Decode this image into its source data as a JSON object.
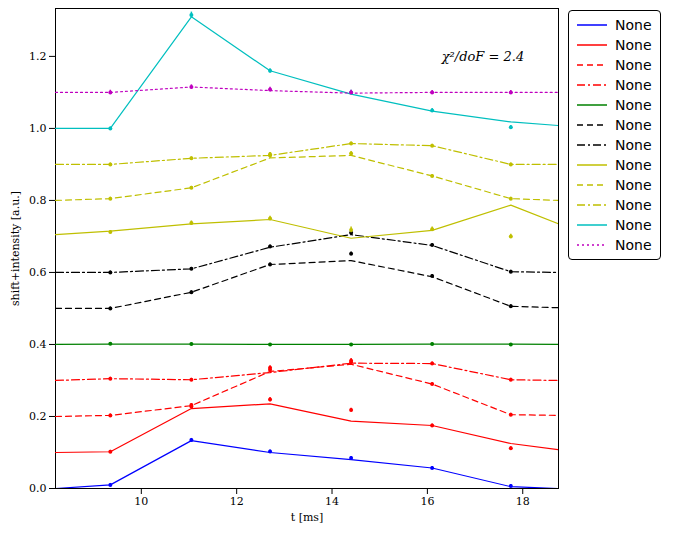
{
  "chart_data": {
    "type": "line",
    "xlabel": "t [ms]",
    "ylabel": "shift+intensity [a.u.]",
    "xlim": [
      8.2,
      18.75
    ],
    "ylim": [
      0,
      1.333
    ],
    "xticks": [
      10,
      12,
      14,
      16,
      18
    ],
    "yticks": [
      {
        "value": 0,
        "label": "0.0"
      },
      {
        "value": 0.2,
        "label": "0.2"
      },
      {
        "value": 0.4,
        "label": "0.4"
      },
      {
        "value": 0.6,
        "label": "0.6"
      },
      {
        "value": 0.8,
        "label": "0.8"
      },
      {
        "value": 1.0,
        "label": "1.0"
      },
      {
        "value": 1.2,
        "label": "1.2"
      }
    ],
    "grid": false,
    "legend": "right",
    "marker": "point",
    "annotations": [
      {
        "text": "χ²/doF = 2.4",
        "x": 16.3,
        "y": 1.2
      }
    ],
    "x": [
      9.35,
      11.05,
      12.7,
      14.4,
      16.1,
      17.75
    ],
    "model_x": [
      8.2,
      9.35,
      11.05,
      12.7,
      14.4,
      16.1,
      17.75,
      18.75
    ],
    "series": [
      {
        "name": "None",
        "color": "#0000ff",
        "line_style": "solid",
        "values": [
          0.01,
          0.135,
          0.103,
          0.085,
          0.057,
          0.007
        ],
        "errors": [
          0.004,
          0.004,
          0.004,
          0.004,
          0.004,
          0.004
        ],
        "model_values": [
          0.0,
          0.01,
          0.133,
          0.1,
          0.08,
          0.057,
          0.005,
          0.0
        ]
      },
      {
        "name": "None",
        "color": "#ff0000",
        "line_style": "solid",
        "values": [
          0.102,
          0.228,
          0.247,
          0.218,
          0.175,
          0.112
        ],
        "errors": [
          0.004,
          0.005,
          0.006,
          0.005,
          0.004,
          0.004
        ],
        "model_values": [
          0.1,
          0.102,
          0.222,
          0.235,
          0.187,
          0.175,
          0.125,
          0.108
        ]
      },
      {
        "name": "None",
        "color": "#ff0000",
        "line_style": "dashed",
        "values": [
          0.203,
          0.232,
          0.33,
          0.355,
          0.29,
          0.205
        ],
        "errors": [
          0.004,
          0.004,
          0.008,
          0.006,
          0.004,
          0.004
        ],
        "model_values": [
          0.2,
          0.203,
          0.23,
          0.325,
          0.345,
          0.29,
          0.205,
          0.203
        ]
      },
      {
        "name": "None",
        "color": "#ff0000",
        "line_style": "dashdot",
        "values": [
          0.305,
          0.302,
          0.335,
          0.35,
          0.347,
          0.302
        ],
        "errors": [
          0.004,
          0.004,
          0.006,
          0.006,
          0.004,
          0.004
        ],
        "model_values": [
          0.3,
          0.305,
          0.302,
          0.322,
          0.348,
          0.347,
          0.302,
          0.3
        ]
      },
      {
        "name": "None",
        "color": "#008000",
        "line_style": "solid",
        "values": [
          0.402,
          0.401,
          0.4,
          0.4,
          0.401,
          0.4
        ],
        "errors": [
          0.003,
          0.003,
          0.003,
          0.003,
          0.003,
          0.003
        ],
        "model_values": [
          0.4,
          0.401,
          0.401,
          0.4,
          0.4,
          0.401,
          0.401,
          0.4
        ]
      },
      {
        "name": "None",
        "color": "#000000",
        "line_style": "dashed",
        "values": [
          0.5,
          0.545,
          0.622,
          0.652,
          0.59,
          0.506
        ],
        "errors": [
          0.004,
          0.004,
          0.004,
          0.005,
          0.004,
          0.004
        ],
        "model_values": [
          0.5,
          0.5,
          0.545,
          0.622,
          0.633,
          0.588,
          0.506,
          0.502
        ]
      },
      {
        "name": "None",
        "color": "#000000",
        "line_style": "dashdot",
        "values": [
          0.6,
          0.61,
          0.672,
          0.71,
          0.676,
          0.602
        ],
        "errors": [
          0.004,
          0.004,
          0.004,
          0.005,
          0.004,
          0.004
        ],
        "model_values": [
          0.6,
          0.6,
          0.61,
          0.67,
          0.705,
          0.675,
          0.602,
          0.6
        ]
      },
      {
        "name": "None",
        "color": "#bfbf00",
        "line_style": "solid",
        "values": [
          0.712,
          0.737,
          0.75,
          0.718,
          0.72,
          0.7
        ],
        "errors": [
          0.004,
          0.006,
          0.006,
          0.008,
          0.006,
          0.006
        ],
        "model_values": [
          0.705,
          0.715,
          0.735,
          0.747,
          0.695,
          0.717,
          0.787,
          0.735
        ]
      },
      {
        "name": "None",
        "color": "#bfbf00",
        "line_style": "dashed",
        "values": [
          0.805,
          0.835,
          0.925,
          0.93,
          0.868,
          0.805
        ],
        "errors": [
          0.004,
          0.004,
          0.008,
          0.006,
          0.004,
          0.004
        ],
        "model_values": [
          0.8,
          0.805,
          0.835,
          0.918,
          0.925,
          0.868,
          0.805,
          0.8
        ]
      },
      {
        "name": "None",
        "color": "#bfbf00",
        "line_style": "dashdot",
        "values": [
          0.9,
          0.917,
          0.928,
          0.958,
          0.952,
          0.9
        ],
        "errors": [
          0.004,
          0.004,
          0.004,
          0.004,
          0.004,
          0.004
        ],
        "model_values": [
          0.9,
          0.9,
          0.917,
          0.925,
          0.958,
          0.952,
          0.9,
          0.9
        ]
      },
      {
        "name": "None",
        "color": "#00bfbf",
        "line_style": "solid",
        "values": [
          1.0,
          1.315,
          1.16,
          1.1,
          1.05,
          1.003
        ],
        "errors": [
          0.004,
          0.008,
          0.006,
          0.006,
          0.005,
          0.005
        ],
        "model_values": [
          1.0,
          1.0,
          1.31,
          1.16,
          1.095,
          1.048,
          1.018,
          1.008
        ]
      },
      {
        "name": "None",
        "color": "#bf00bf",
        "line_style": "dotted",
        "values": [
          1.1,
          1.115,
          1.108,
          1.1,
          1.1,
          1.1
        ],
        "errors": [
          0.006,
          0.006,
          0.006,
          0.006,
          0.005,
          0.005
        ],
        "model_values": [
          1.1,
          1.1,
          1.115,
          1.105,
          1.098,
          1.1,
          1.1,
          1.1
        ]
      }
    ]
  }
}
